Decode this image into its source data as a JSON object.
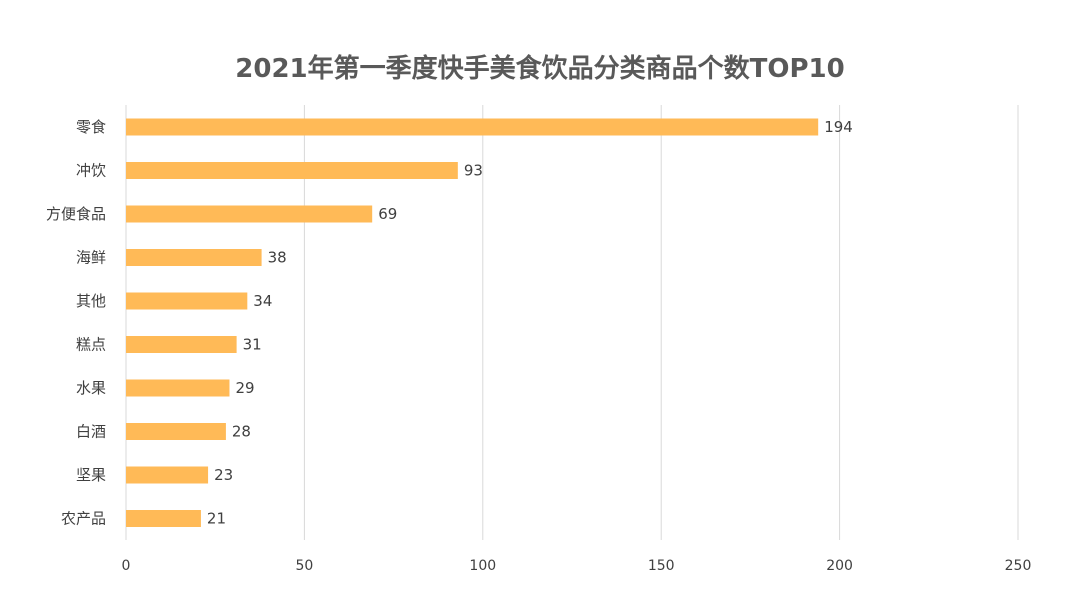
{
  "chart_data": {
    "type": "bar",
    "orientation": "horizontal",
    "title": "2021年第一季度快手美食饮品分类商品个数TOP10",
    "categories": [
      "零食",
      "冲饮",
      "方便食品",
      "海鲜",
      "其他",
      "糕点",
      "水果",
      "白酒",
      "坚果",
      "农产品"
    ],
    "values": [
      194,
      93,
      69,
      38,
      34,
      31,
      29,
      28,
      23,
      21
    ],
    "xlim": [
      0,
      250
    ],
    "xticks": [
      0,
      50,
      100,
      150,
      200,
      250
    ],
    "grid": "vertical",
    "bar_color": "#FFBA57",
    "xlabel": "",
    "ylabel": ""
  }
}
